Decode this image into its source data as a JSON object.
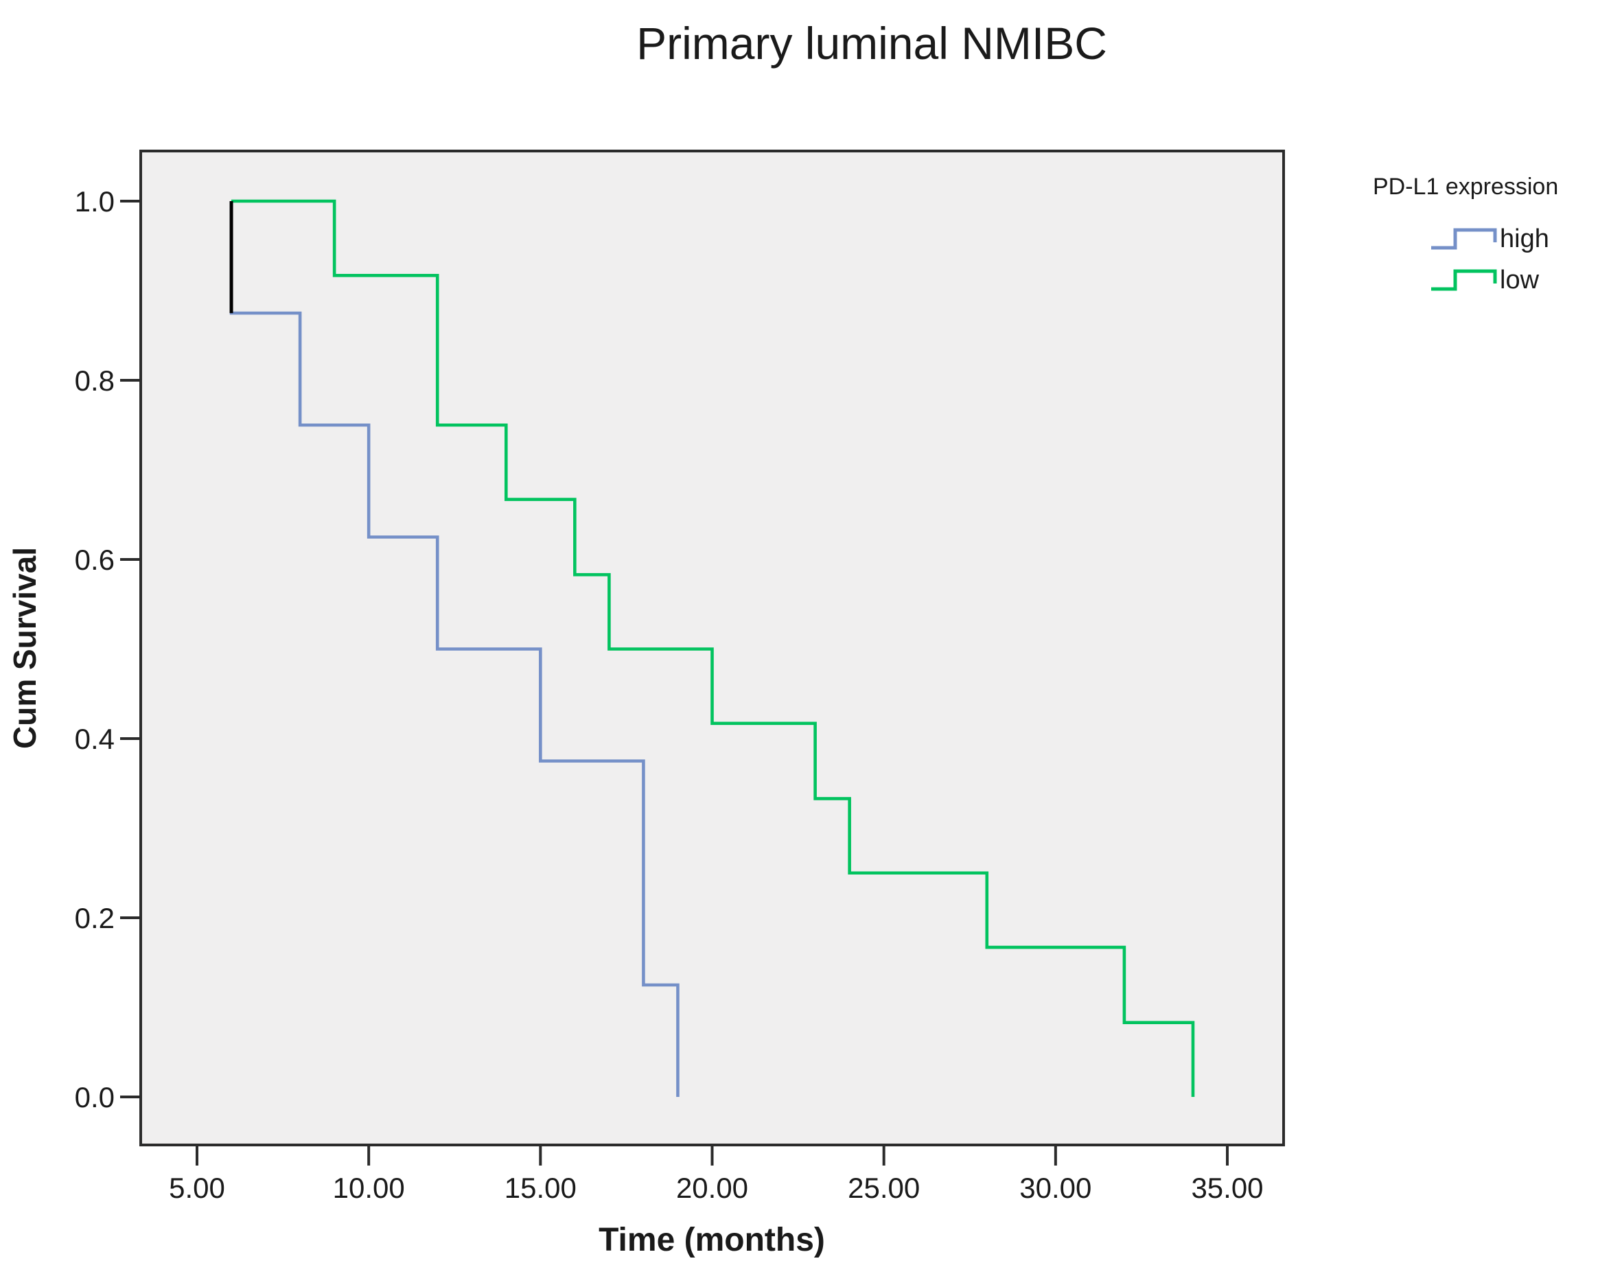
{
  "title": "Primary luminal NMIBC",
  "axes": {
    "x_label": "Time (months)",
    "y_label": "Cum Survival",
    "x_ticks": [
      {
        "value": 5,
        "label": "5.00"
      },
      {
        "value": 10,
        "label": "10.00"
      },
      {
        "value": 15,
        "label": "15.00"
      },
      {
        "value": 20,
        "label": "20.00"
      },
      {
        "value": 25,
        "label": "25.00"
      },
      {
        "value": 30,
        "label": "30.00"
      },
      {
        "value": 35,
        "label": "35.00"
      }
    ],
    "y_ticks": [
      {
        "value": 1.0,
        "label": "1.0"
      },
      {
        "value": 0.8,
        "label": "0.8"
      },
      {
        "value": 0.6,
        "label": "0.6"
      },
      {
        "value": 0.4,
        "label": "0.4"
      },
      {
        "value": 0.2,
        "label": "0.2"
      },
      {
        "value": 0.0,
        "label": "0.0"
      }
    ]
  },
  "legend": {
    "title": "PD-L1 expression",
    "entries": [
      {
        "label": "high",
        "color": "#7590C8"
      },
      {
        "label": "low",
        "color": "#02C35F"
      }
    ]
  },
  "colors": {
    "plot_background": "#F0EFEF",
    "frame": "#2B2B2B",
    "text": "#1A1A1A",
    "high_curve": "#7590C8",
    "low_curve": "#02C35F",
    "initial_segment": "#000000"
  },
  "chart_data": {
    "type": "line",
    "subtype": "kaplan-meier-step",
    "title": "Primary luminal NMIBC",
    "xlabel": "Time (months)",
    "ylabel": "Cum Survival",
    "xlim": [
      3.36,
      36.64
    ],
    "ylim": [
      -0.054,
      1.056
    ],
    "grid": false,
    "legend_position": "right-top",
    "series": [
      {
        "name": "high",
        "color": "#7590C8",
        "points": [
          [
            6,
            1.0
          ],
          [
            6,
            0.875
          ],
          [
            8,
            0.875
          ],
          [
            8,
            0.75
          ],
          [
            10,
            0.75
          ],
          [
            10,
            0.625
          ],
          [
            12,
            0.625
          ],
          [
            12,
            0.5
          ],
          [
            15,
            0.5
          ],
          [
            15,
            0.375
          ],
          [
            18,
            0.375
          ],
          [
            18,
            0.125
          ],
          [
            19,
            0.125
          ],
          [
            19,
            0.0
          ]
        ]
      },
      {
        "name": "low",
        "color": "#02C35F",
        "points": [
          [
            6,
            1.0
          ],
          [
            9,
            1.0
          ],
          [
            9,
            0.917
          ],
          [
            12,
            0.917
          ],
          [
            12,
            0.75
          ],
          [
            14,
            0.75
          ],
          [
            14,
            0.667
          ],
          [
            16,
            0.667
          ],
          [
            16,
            0.583
          ],
          [
            17,
            0.583
          ],
          [
            17,
            0.5
          ],
          [
            20,
            0.5
          ],
          [
            20,
            0.417
          ],
          [
            23,
            0.417
          ],
          [
            23,
            0.333
          ],
          [
            24,
            0.333
          ],
          [
            24,
            0.25
          ],
          [
            28,
            0.25
          ],
          [
            28,
            0.167
          ],
          [
            32,
            0.167
          ],
          [
            32,
            0.083
          ],
          [
            34,
            0.083
          ],
          [
            34,
            0.0
          ]
        ]
      }
    ],
    "annotations": [
      {
        "type": "segment",
        "color": "#000000",
        "points": [
          [
            6,
            1.0
          ],
          [
            6,
            0.875
          ]
        ]
      }
    ]
  }
}
